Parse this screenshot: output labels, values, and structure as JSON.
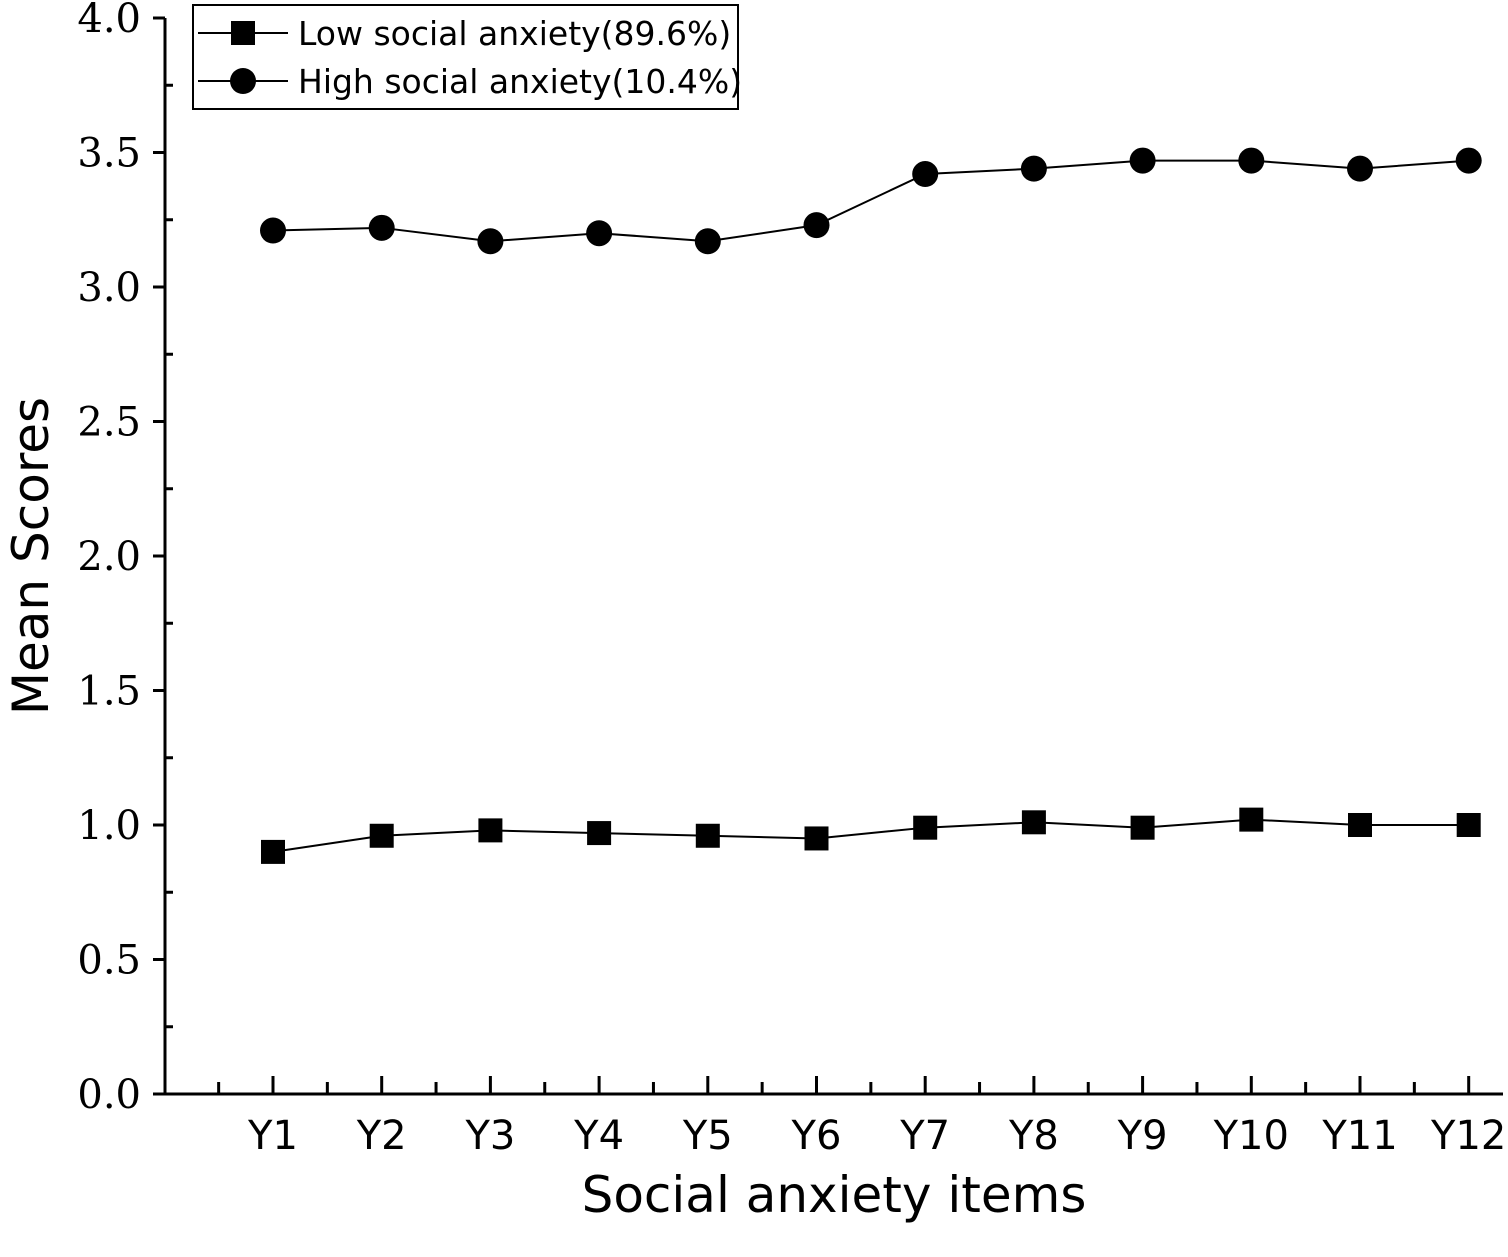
{
  "chart_data": {
    "type": "line",
    "title": "",
    "xlabel": "Social anxiety items",
    "ylabel": "Mean Scores",
    "categories": [
      "Y1",
      "Y2",
      "Y3",
      "Y4",
      "Y5",
      "Y6",
      "Y7",
      "Y8",
      "Y9",
      "Y10",
      "Y11",
      "Y12"
    ],
    "ylim": [
      0,
      4
    ],
    "yticks": [
      0,
      0.5,
      1,
      1.5,
      2,
      2.5,
      3,
      3.5,
      4
    ],
    "ytick_labels": [
      "0.0",
      "0.5",
      "1.0",
      "1.5",
      "2.0",
      "2.5",
      "3.0",
      "3.5",
      "4.0"
    ],
    "grid": false,
    "legend_position": "top-left",
    "series": [
      {
        "name": "Low social anxiety(89.6%)",
        "marker": "square",
        "color": "#000000",
        "values": [
          0.9,
          0.96,
          0.98,
          0.97,
          0.96,
          0.95,
          0.99,
          1.01,
          0.99,
          1.02,
          1.0,
          1.0
        ]
      },
      {
        "name": "High social anxiety(10.4%)",
        "marker": "circle",
        "color": "#000000",
        "values": [
          3.21,
          3.22,
          3.17,
          3.2,
          3.17,
          3.23,
          3.42,
          3.44,
          3.47,
          3.47,
          3.44,
          3.47
        ]
      }
    ]
  }
}
